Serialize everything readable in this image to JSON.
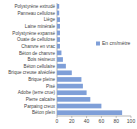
{
  "chart_data": {
    "type": "bar",
    "orientation": "horizontal",
    "categories": [
      "Polystyrène extrudé",
      "Panneau cellulose",
      "Liège",
      "Laine minérale",
      "Polystyrène expansé",
      "Ouate de cellulose",
      "Chanvre en vrac",
      "Béton de chanvre",
      "Bois résineux",
      "Béton cellulaire",
      "Brique creuse alvéolée",
      "Brique pleine",
      "Pisé",
      "Adobe (terre crue)",
      "Pierre calcaire",
      "Parpaing creux",
      "Béton plein"
    ],
    "series": [
      {
        "name": "En cm/mètre",
        "color": "#7f9fd8",
        "values": [
          3,
          3,
          4,
          4,
          4,
          4,
          4,
          6,
          8,
          12,
          20,
          33,
          35,
          40,
          45,
          60,
          88
        ]
      }
    ],
    "xlim": [
      0,
      100
    ],
    "xticks": [
      0,
      20,
      40,
      60,
      80,
      100
    ],
    "grid": false,
    "legend": "right"
  }
}
